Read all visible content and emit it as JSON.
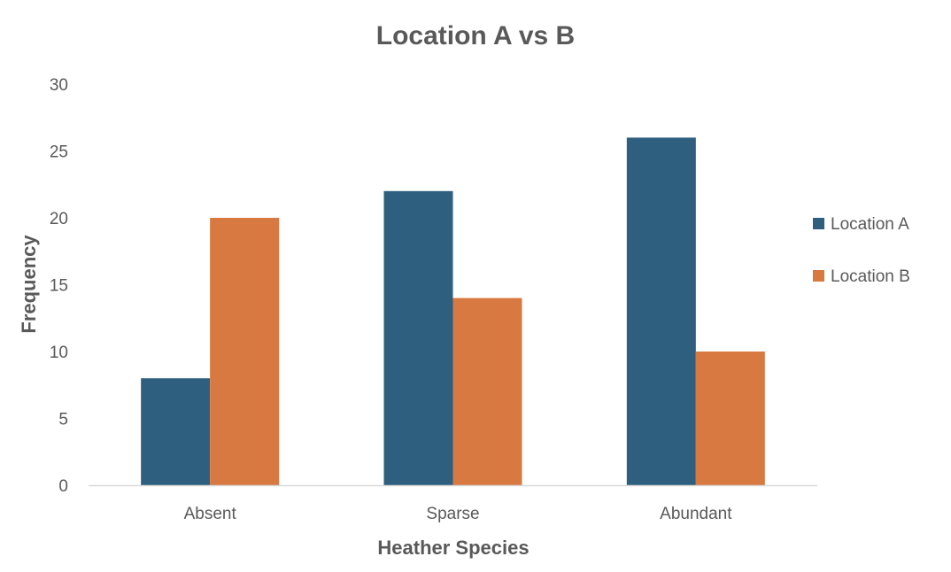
{
  "chart_data": {
    "type": "bar",
    "title": "Location A vs B",
    "xlabel": "Heather Species",
    "ylabel": "Frequency",
    "categories": [
      "Absent",
      "Sparse",
      "Abundant"
    ],
    "series": [
      {
        "name": "Location A",
        "color": "#2E5F7E",
        "values": [
          8,
          22,
          26
        ]
      },
      {
        "name": "Location B",
        "color": "#D87941",
        "values": [
          20,
          14,
          10
        ]
      }
    ],
    "ylim": [
      0,
      30
    ],
    "yticks": [
      0,
      5,
      10,
      15,
      20,
      25,
      30
    ],
    "grid": false,
    "legend_position": "right"
  }
}
